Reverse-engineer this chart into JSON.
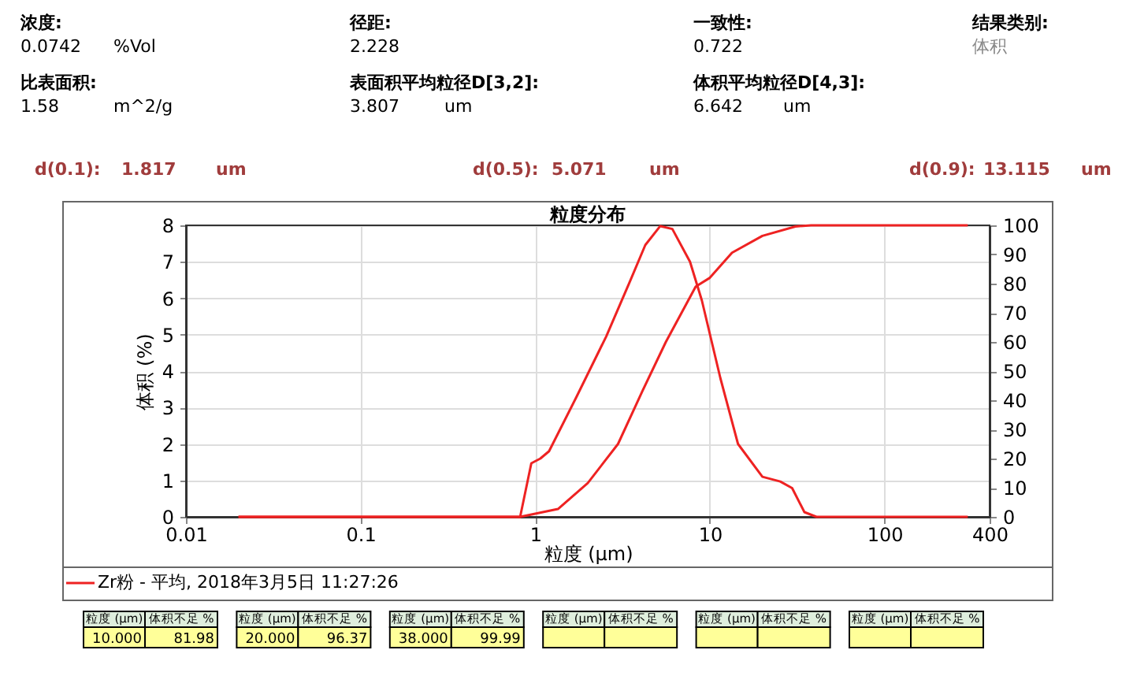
{
  "chart_data": {
    "type": "line",
    "title": "粒度分布",
    "xlabel": "粒度 (μm)",
    "ylabel": "体积 (%)",
    "log": "x",
    "xlim": [
      0.01,
      400
    ],
    "xticks": [
      0.01,
      0.1,
      1,
      10,
      100,
      400
    ],
    "ylim": [
      0,
      8
    ],
    "yticks": [
      0,
      1,
      2,
      3,
      4,
      5,
      6,
      7,
      8
    ],
    "y2lim": [
      0,
      100
    ],
    "y2ticks": [
      0,
      10,
      20,
      30,
      40,
      50,
      60,
      70,
      80,
      90,
      100
    ],
    "grid": true,
    "legend": "bottom",
    "marker": "none",
    "line_style": "solid",
    "series": [
      {
        "name": "Zr粉 - 平均, 2018年3月5日 11:27:26",
        "color": "#ee2222",
        "x": [
          0.02,
          0.82,
          0.95,
          1.07,
          1.2,
          1.71,
          2.55,
          3.5,
          4.27,
          5.2,
          6.1,
          7.7,
          9.0,
          11.5,
          14.5,
          20,
          25.3,
          29.6,
          34.8,
          40.8,
          300
        ],
        "values": [
          0,
          0,
          1.47,
          1.6,
          1.8,
          3.26,
          4.95,
          6.48,
          7.46,
          7.98,
          7.9,
          7.0,
          5.94,
          3.8,
          2.0,
          1.1,
          0.97,
          0.79,
          0.13,
          0,
          0
        ]
      },
      {
        "color": "#ee2222",
        "axis": "y2",
        "x": [
          0.02,
          0.82,
          1.35,
          2.0,
          2.98,
          4.1,
          5.6,
          8.3,
          10,
          13.4,
          20,
          30.9,
          38,
          300
        ],
        "values": [
          0,
          0,
          2.7,
          11.6,
          25,
          43,
          60,
          79,
          82,
          90.6,
          96.4,
          99.6,
          100,
          100
        ]
      }
    ],
    "annotations": [
      "浓度:",
      "0.0742",
      "%Vol",
      "径距:",
      "2.228",
      "一致性:",
      "0.722",
      "结果类别:",
      "体积",
      "比表面积:",
      "1.58",
      "m^2/g",
      "表面积平均粒径D[3,2]:",
      "3.807",
      "um",
      "体积平均粒径D[4,3]:",
      "6.642",
      "um",
      "d(0.1):",
      "1.817",
      "um",
      "d(0.5):",
      "5.071",
      "um",
      "d(0.9):",
      "13.115",
      "um",
      "粒度 (μm)",
      "体积不足 %",
      "粒度 (μm)",
      "体积不足 %",
      "粒度 (μm)",
      "体积不足 %",
      "粒度 (μm)",
      "体积不足 %",
      "粒度 (μm)",
      "体积不足 %",
      "粒度 (μm)",
      "体积不足 %",
      "10.000",
      "81.98",
      "20.000",
      "96.37",
      "38.000",
      "99.99"
    ]
  }
}
